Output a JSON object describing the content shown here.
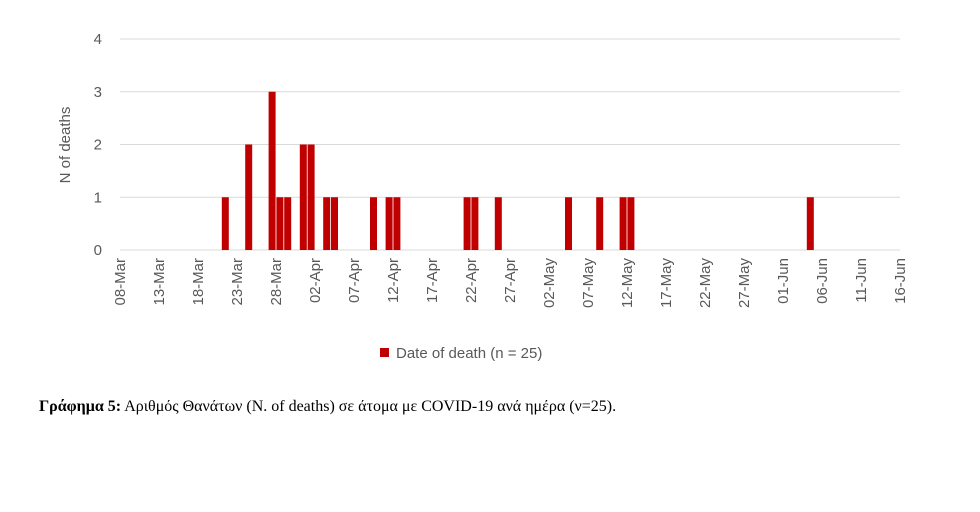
{
  "chart_data": {
    "type": "bar",
    "x_type": "date",
    "ylabel": "N of deaths",
    "ylim": [
      0,
      4
    ],
    "yticks": [
      0,
      1,
      2,
      3,
      4
    ],
    "grid": true,
    "legend_position": "bottom",
    "x_ticks": [
      "08-Mar",
      "13-Mar",
      "18-Mar",
      "23-Mar",
      "28-Mar",
      "02-Apr",
      "07-Apr",
      "12-Apr",
      "17-Apr",
      "22-Apr",
      "27-Apr",
      "02-May",
      "07-May",
      "12-May",
      "17-May",
      "22-May",
      "27-May",
      "01-Jun",
      "06-Jun",
      "11-Jun",
      "16-Jun"
    ],
    "series": [
      {
        "name": "Date of death (n = 25)",
        "color": "#C00000",
        "points": [
          {
            "x": "2020-03-21",
            "y": 1
          },
          {
            "x": "2020-03-24",
            "y": 2
          },
          {
            "x": "2020-03-27",
            "y": 3
          },
          {
            "x": "2020-03-28",
            "y": 1
          },
          {
            "x": "2020-03-29",
            "y": 1
          },
          {
            "x": "2020-03-31",
            "y": 2
          },
          {
            "x": "2020-04-01",
            "y": 2
          },
          {
            "x": "2020-04-03",
            "y": 1
          },
          {
            "x": "2020-04-04",
            "y": 1
          },
          {
            "x": "2020-04-09",
            "y": 1
          },
          {
            "x": "2020-04-11",
            "y": 1
          },
          {
            "x": "2020-04-12",
            "y": 1
          },
          {
            "x": "2020-04-21",
            "y": 1
          },
          {
            "x": "2020-04-22",
            "y": 1
          },
          {
            "x": "2020-04-25",
            "y": 1
          },
          {
            "x": "2020-05-04",
            "y": 1
          },
          {
            "x": "2020-05-08",
            "y": 1
          },
          {
            "x": "2020-05-11",
            "y": 1
          },
          {
            "x": "2020-05-12",
            "y": 1
          },
          {
            "x": "2020-06-04",
            "y": 1
          }
        ]
      }
    ]
  },
  "caption": {
    "label": "Γράφημα 5:",
    "text": " Αριθμός Θανάτων (N. of deaths) σε άτομα με COVID-19 ανά ημέρα (ν=25)."
  }
}
